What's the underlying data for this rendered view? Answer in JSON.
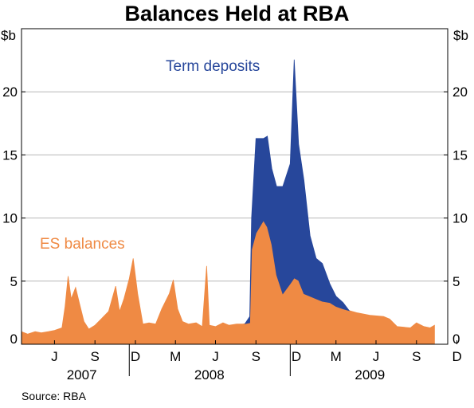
{
  "title": "Balances Held at RBA",
  "source": "Source: RBA",
  "chart_data": {
    "type": "area",
    "stacked": true,
    "title": "Balances Held at RBA",
    "y_unit_left": "$b",
    "y_unit_right": "$b",
    "ylim": [
      0,
      25
    ],
    "yticks": [
      0,
      5,
      10,
      15,
      20
    ],
    "grid": true,
    "x_month_ticks": [
      "J",
      "S",
      "D",
      "M",
      "J",
      "S",
      "D",
      "M",
      "J",
      "S",
      "D"
    ],
    "x_year_labels": [
      "2007",
      "2008",
      "2009"
    ],
    "x_range": [
      "2007-05",
      "2009-12"
    ],
    "colors": {
      "es": "#ef8a44",
      "term": "#27479b",
      "grid": "#b7b7b7"
    },
    "series": [
      {
        "name": "ES balances",
        "points": [
          [
            "2007-05-01",
            1.0
          ],
          [
            "2007-05-15",
            0.8
          ],
          [
            "2007-06-01",
            1.0
          ],
          [
            "2007-06-15",
            0.9
          ],
          [
            "2007-07-01",
            1.0
          ],
          [
            "2007-07-15",
            1.1
          ],
          [
            "2007-08-01",
            1.3
          ],
          [
            "2007-08-08",
            3.0
          ],
          [
            "2007-08-15",
            5.4
          ],
          [
            "2007-08-22",
            3.6
          ],
          [
            "2007-09-01",
            4.5
          ],
          [
            "2007-09-10",
            3.2
          ],
          [
            "2007-09-20",
            1.8
          ],
          [
            "2007-10-01",
            1.2
          ],
          [
            "2007-10-15",
            1.5
          ],
          [
            "2007-11-01",
            2.1
          ],
          [
            "2007-11-15",
            2.6
          ],
          [
            "2007-12-01",
            4.6
          ],
          [
            "2007-12-10",
            2.6
          ],
          [
            "2007-12-20",
            3.6
          ],
          [
            "2008-01-01",
            5.2
          ],
          [
            "2008-01-10",
            6.8
          ],
          [
            "2008-01-20",
            4.0
          ],
          [
            "2008-02-01",
            1.6
          ],
          [
            "2008-02-15",
            1.7
          ],
          [
            "2008-03-01",
            1.6
          ],
          [
            "2008-03-15",
            2.8
          ],
          [
            "2008-04-01",
            4.0
          ],
          [
            "2008-04-10",
            5.1
          ],
          [
            "2008-04-20",
            2.8
          ],
          [
            "2008-05-01",
            1.8
          ],
          [
            "2008-05-15",
            1.6
          ],
          [
            "2008-06-01",
            1.7
          ],
          [
            "2008-06-15",
            1.4
          ],
          [
            "2008-06-25",
            6.2
          ],
          [
            "2008-07-01",
            1.5
          ],
          [
            "2008-07-15",
            1.4
          ],
          [
            "2008-08-01",
            1.7
          ],
          [
            "2008-08-15",
            1.5
          ],
          [
            "2008-09-01",
            1.6
          ],
          [
            "2008-09-15",
            1.6
          ],
          [
            "2008-10-01",
            1.7
          ],
          [
            "2008-10-05",
            7.5
          ],
          [
            "2008-10-15",
            8.8
          ],
          [
            "2008-11-01",
            9.8
          ],
          [
            "2008-11-15",
            9.0
          ],
          [
            "2008-12-01",
            5.5
          ],
          [
            "2008-12-15",
            4.0
          ],
          [
            "2009-01-01",
            4.8
          ],
          [
            "2009-01-15",
            5.5
          ],
          [
            "2009-02-01",
            4.0
          ],
          [
            "2009-02-15",
            3.8
          ],
          [
            "2009-03-01",
            3.6
          ],
          [
            "2009-03-15",
            3.4
          ],
          [
            "2009-04-01",
            3.3
          ],
          [
            "2009-04-15",
            3.0
          ],
          [
            "2009-05-01",
            2.8
          ],
          [
            "2009-06-01",
            2.5
          ],
          [
            "2009-07-01",
            2.3
          ],
          [
            "2009-08-01",
            2.2
          ],
          [
            "2009-08-15",
            2.0
          ],
          [
            "2009-09-01",
            1.4
          ],
          [
            "2009-10-01",
            1.3
          ],
          [
            "2009-10-15",
            1.7
          ],
          [
            "2009-11-01",
            1.4
          ],
          [
            "2009-11-15",
            1.3
          ],
          [
            "2009-11-25",
            1.5
          ]
        ]
      },
      {
        "name": "Term deposits",
        "points": [
          [
            "2008-09-20",
            0.0
          ],
          [
            "2008-10-01",
            0.5
          ],
          [
            "2008-10-05",
            2.5
          ],
          [
            "2008-10-15",
            7.5
          ],
          [
            "2008-11-01",
            6.5
          ],
          [
            "2008-11-10",
            7.2
          ],
          [
            "2008-11-20",
            6.0
          ],
          [
            "2008-12-01",
            7.0
          ],
          [
            "2008-12-15",
            8.5
          ],
          [
            "2009-01-01",
            9.5
          ],
          [
            "2009-01-10",
            17.3
          ],
          [
            "2009-01-20",
            10.8
          ],
          [
            "2009-02-01",
            9.0
          ],
          [
            "2009-02-15",
            4.8
          ],
          [
            "2009-03-01",
            3.2
          ],
          [
            "2009-03-15",
            3.0
          ],
          [
            "2009-04-01",
            1.5
          ],
          [
            "2009-04-15",
            0.8
          ],
          [
            "2009-05-01",
            0.5
          ],
          [
            "2009-05-15",
            0.0
          ]
        ]
      }
    ]
  }
}
